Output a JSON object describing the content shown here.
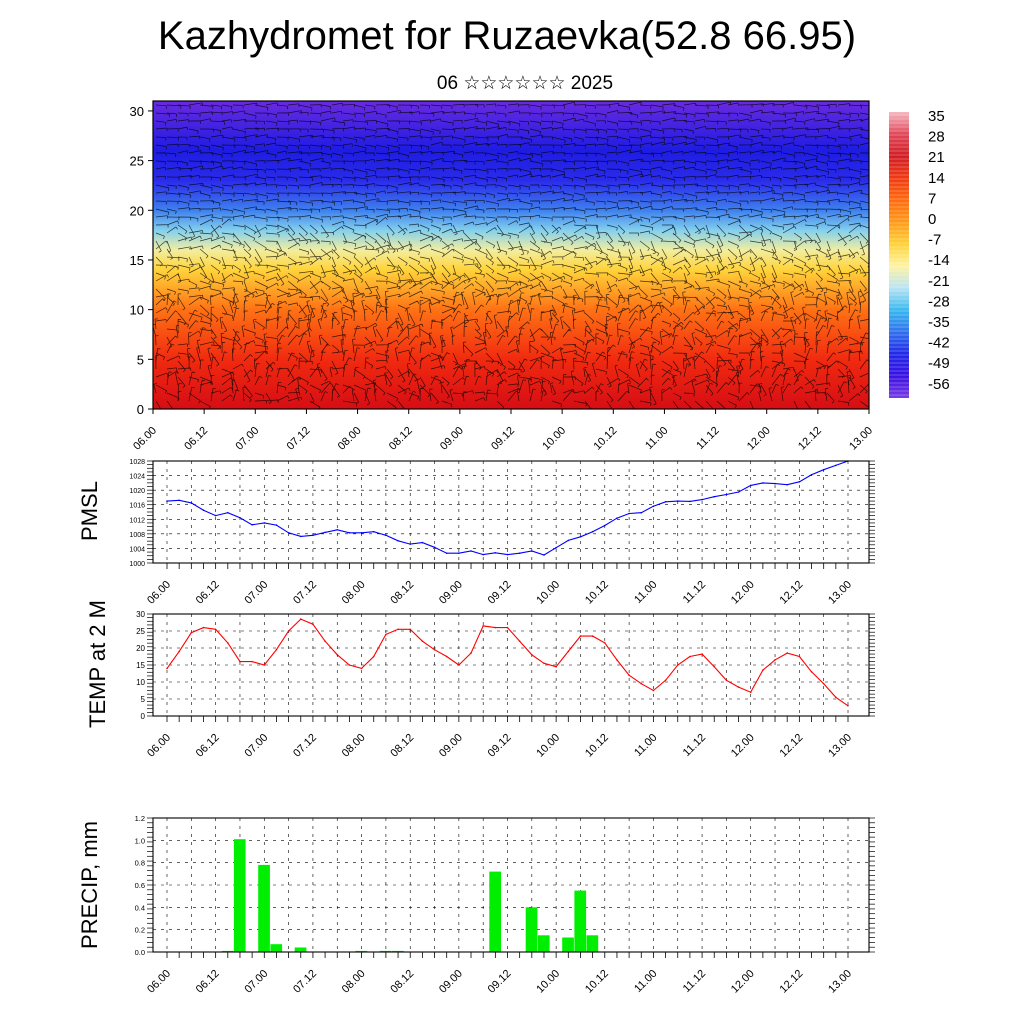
{
  "header": {
    "title": "Kazhydromet for Ruzaevka(52.8 66.95)",
    "subtitle": "06 ☆☆☆☆☆☆ 2025"
  },
  "x_ticks": [
    "06.00",
    "06.12",
    "07.00",
    "07.12",
    "08.00",
    "08.12",
    "09.00",
    "09.12",
    "10.00",
    "10.12",
    "11.00",
    "11.12",
    "12.00",
    "12.12",
    "13.00"
  ],
  "chart_data": [
    {
      "type": "heatmap",
      "title": "",
      "xlabel": "",
      "ylabel": "",
      "x_range": [
        "06.00",
        "13.00"
      ],
      "y_ticks": [
        0,
        5,
        10,
        15,
        20,
        25,
        30
      ],
      "ylim": [
        0,
        31
      ],
      "colorbar_labels": [
        "35",
        "28",
        "21",
        "14",
        "7",
        "0",
        "-7",
        "-14",
        "-21",
        "-28",
        "-35",
        "-42",
        "-49",
        "-56"
      ],
      "colorbar_colors": [
        "#f5b8c0",
        "#e2475a",
        "#d21e24",
        "#ef3a12",
        "#ff6a0f",
        "#ff9a1a",
        "#ffd23a",
        "#fff3a2",
        "#b8e4f4",
        "#38b9f0",
        "#2f71ee",
        "#2128e8",
        "#3a12e2",
        "#7a3ae4"
      ],
      "levels": [
        {
          "height": 0,
          "color": "#d60d14"
        },
        {
          "height": 5,
          "color": "#f12a10"
        },
        {
          "height": 10,
          "color": "#ff7214"
        },
        {
          "height": 14,
          "color": "#ffd33a"
        },
        {
          "height": 16,
          "color": "#f2eea0"
        },
        {
          "height": 18,
          "color": "#83cfee"
        },
        {
          "height": 20,
          "color": "#3e80ee"
        },
        {
          "height": 23,
          "color": "#2a2bea"
        },
        {
          "height": 26,
          "color": "#1e1ce2"
        },
        {
          "height": 31,
          "color": "#6a2ae0"
        }
      ],
      "wind_barbs": "dense black wind barbs overlaid"
    },
    {
      "type": "line",
      "ylabel": "PMSL",
      "ylim": [
        1000,
        1028
      ],
      "y_ticks": [
        1000,
        1004,
        1008,
        1012,
        1016,
        1020,
        1024,
        1028
      ],
      "color": "#0000ff",
      "x_hours": [
        0,
        3,
        6,
        9,
        12,
        15,
        18,
        21,
        24,
        27,
        30,
        33,
        36,
        39,
        42,
        45,
        48,
        51,
        54,
        57,
        60,
        63,
        66,
        69,
        72,
        75,
        78,
        81,
        84,
        87,
        90,
        93,
        96,
        99,
        102,
        105,
        108,
        111,
        114,
        117,
        120,
        123,
        126,
        129,
        132,
        135,
        138,
        141,
        144,
        147,
        150,
        153,
        156,
        159,
        162,
        165,
        168
      ],
      "values": [
        1017,
        1017.2,
        1016.5,
        1014.5,
        1013,
        1013.8,
        1012.4,
        1010.5,
        1011,
        1010.4,
        1008.3,
        1007.3,
        1007.6,
        1008.4,
        1009.1,
        1008.3,
        1008.3,
        1008.6,
        1007.6,
        1006.1,
        1005.2,
        1005.6,
        1004.3,
        1002.7,
        1002.7,
        1003.3,
        1002.3,
        1002.8,
        1002.3,
        1002.7,
        1003.3,
        1002.2,
        1004.2,
        1006.2,
        1007.2,
        1008.6,
        1010.3,
        1012.3,
        1013.6,
        1013.8,
        1015.6,
        1016.8,
        1017.0,
        1016.9,
        1017.4,
        1018.2,
        1018.8,
        1019.5,
        1021.3,
        1022.0,
        1021.8,
        1021.5,
        1022.3,
        1024.2,
        1025.6,
        1026.8,
        1028
      ]
    },
    {
      "type": "line",
      "ylabel": "TEMP at 2 M",
      "ylim": [
        0,
        30
      ],
      "y_ticks": [
        0,
        5,
        10,
        15,
        20,
        25,
        30
      ],
      "color": "#ff0000",
      "x_hours": [
        0,
        3,
        6,
        9,
        12,
        15,
        18,
        21,
        24,
        27,
        30,
        33,
        36,
        39,
        42,
        45,
        48,
        51,
        54,
        57,
        60,
        63,
        66,
        69,
        72,
        75,
        78,
        81,
        84,
        87,
        90,
        93,
        96,
        99,
        102,
        105,
        108,
        111,
        114,
        117,
        120,
        123,
        126,
        129,
        132,
        135,
        138,
        141,
        144,
        147,
        150,
        153,
        156,
        159,
        162,
        165,
        168
      ],
      "values": [
        14,
        19,
        24.5,
        26,
        25.5,
        21.5,
        16,
        16,
        15,
        19.5,
        25,
        28.5,
        27,
        22,
        18,
        15,
        14,
        17.5,
        24,
        25.5,
        25.5,
        22,
        19.5,
        17.5,
        15,
        18.5,
        26.5,
        26,
        26,
        22,
        18,
        15.5,
        14.5,
        19,
        23.5,
        23.5,
        21.5,
        16.5,
        12,
        9.5,
        7.5,
        10.5,
        15,
        17.5,
        18.2,
        14.5,
        10.5,
        8.5,
        7,
        13.5,
        16.5,
        18.5,
        17.5,
        13,
        9.5,
        5.5,
        3
      ]
    },
    {
      "type": "bar",
      "ylabel": "PRECIP, mm",
      "ylim": [
        0,
        1.2
      ],
      "y_ticks": [
        0.0,
        0.2,
        0.4,
        0.6,
        0.8,
        1.0,
        1.2
      ],
      "y_tick_labels": [
        "0.0",
        "0.2",
        "0.4",
        "0.6",
        "0.8",
        "1.0",
        "1.2"
      ],
      "color": "#00ee00",
      "x_hours": [
        15,
        18,
        24,
        27,
        33,
        48,
        54,
        57,
        81,
        90,
        93,
        99,
        102,
        105
      ],
      "values": [
        0.01,
        1.01,
        0.78,
        0.07,
        0.04,
        0.01,
        0.01,
        0.01,
        0.72,
        0.4,
        0.15,
        0.13,
        0.55,
        0.15
      ]
    }
  ]
}
